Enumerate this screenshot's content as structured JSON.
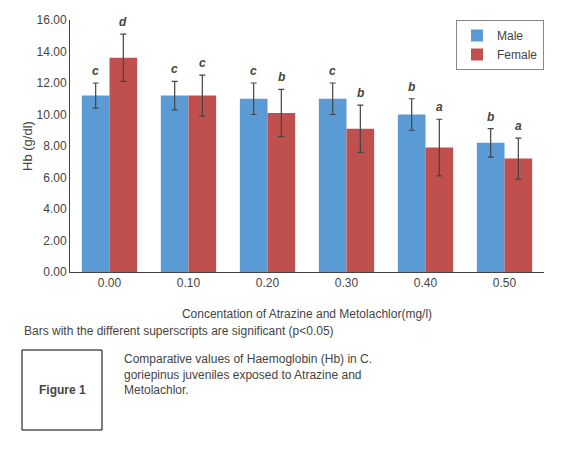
{
  "chart_data": {
    "type": "bar",
    "categories": [
      "0.00",
      "0.10",
      "0.20",
      "0.30",
      "0.40",
      "0.50"
    ],
    "series": [
      {
        "name": "Male",
        "color": "#5B9BD5",
        "values": [
          11.2,
          11.2,
          11.0,
          11.0,
          10.0,
          8.2
        ],
        "errors": [
          0.8,
          0.9,
          1.0,
          1.0,
          1.0,
          0.9
        ],
        "labels": [
          "c",
          "c",
          "c",
          "c",
          "b",
          "b"
        ]
      },
      {
        "name": "Female",
        "color": "#C0504D",
        "values": [
          13.6,
          11.2,
          10.1,
          9.1,
          7.9,
          7.2
        ],
        "errors": [
          1.5,
          1.3,
          1.5,
          1.5,
          1.8,
          1.3
        ],
        "labels": [
          "d",
          "c",
          "b",
          "b",
          "a",
          "a"
        ]
      }
    ],
    "ylabel": "Hb (g/dl)",
    "xlabel": "Concentation of Atrazine and Metolachlor(mg/l)",
    "ylim": [
      0,
      16.0
    ],
    "yticks": [
      {
        "value": 0.0,
        "label": "0.00"
      },
      {
        "value": 2.0,
        "label": "2.00"
      },
      {
        "value": 4.0,
        "label": "4.00"
      },
      {
        "value": 6.0,
        "label": "6.00"
      },
      {
        "value": 8.0,
        "label": "8.00"
      },
      {
        "value": 10.0,
        "label": "10.00"
      },
      {
        "value": 12.0,
        "label": "12.00"
      },
      {
        "value": 14.0,
        "label": "14.00"
      },
      {
        "value": 16.0,
        "label": "16.00"
      }
    ],
    "grid": false,
    "legend": "upper right",
    "annotations": [
      "Bars with the different superscripts are significant (p<0.05)"
    ],
    "figure_label": "Figure 1",
    "figure_caption": "Comparative values of Haemoglobin (Hb) in C.\ngoriepinus juveniles exposed to Atrazine and\nMetolachlor."
  }
}
